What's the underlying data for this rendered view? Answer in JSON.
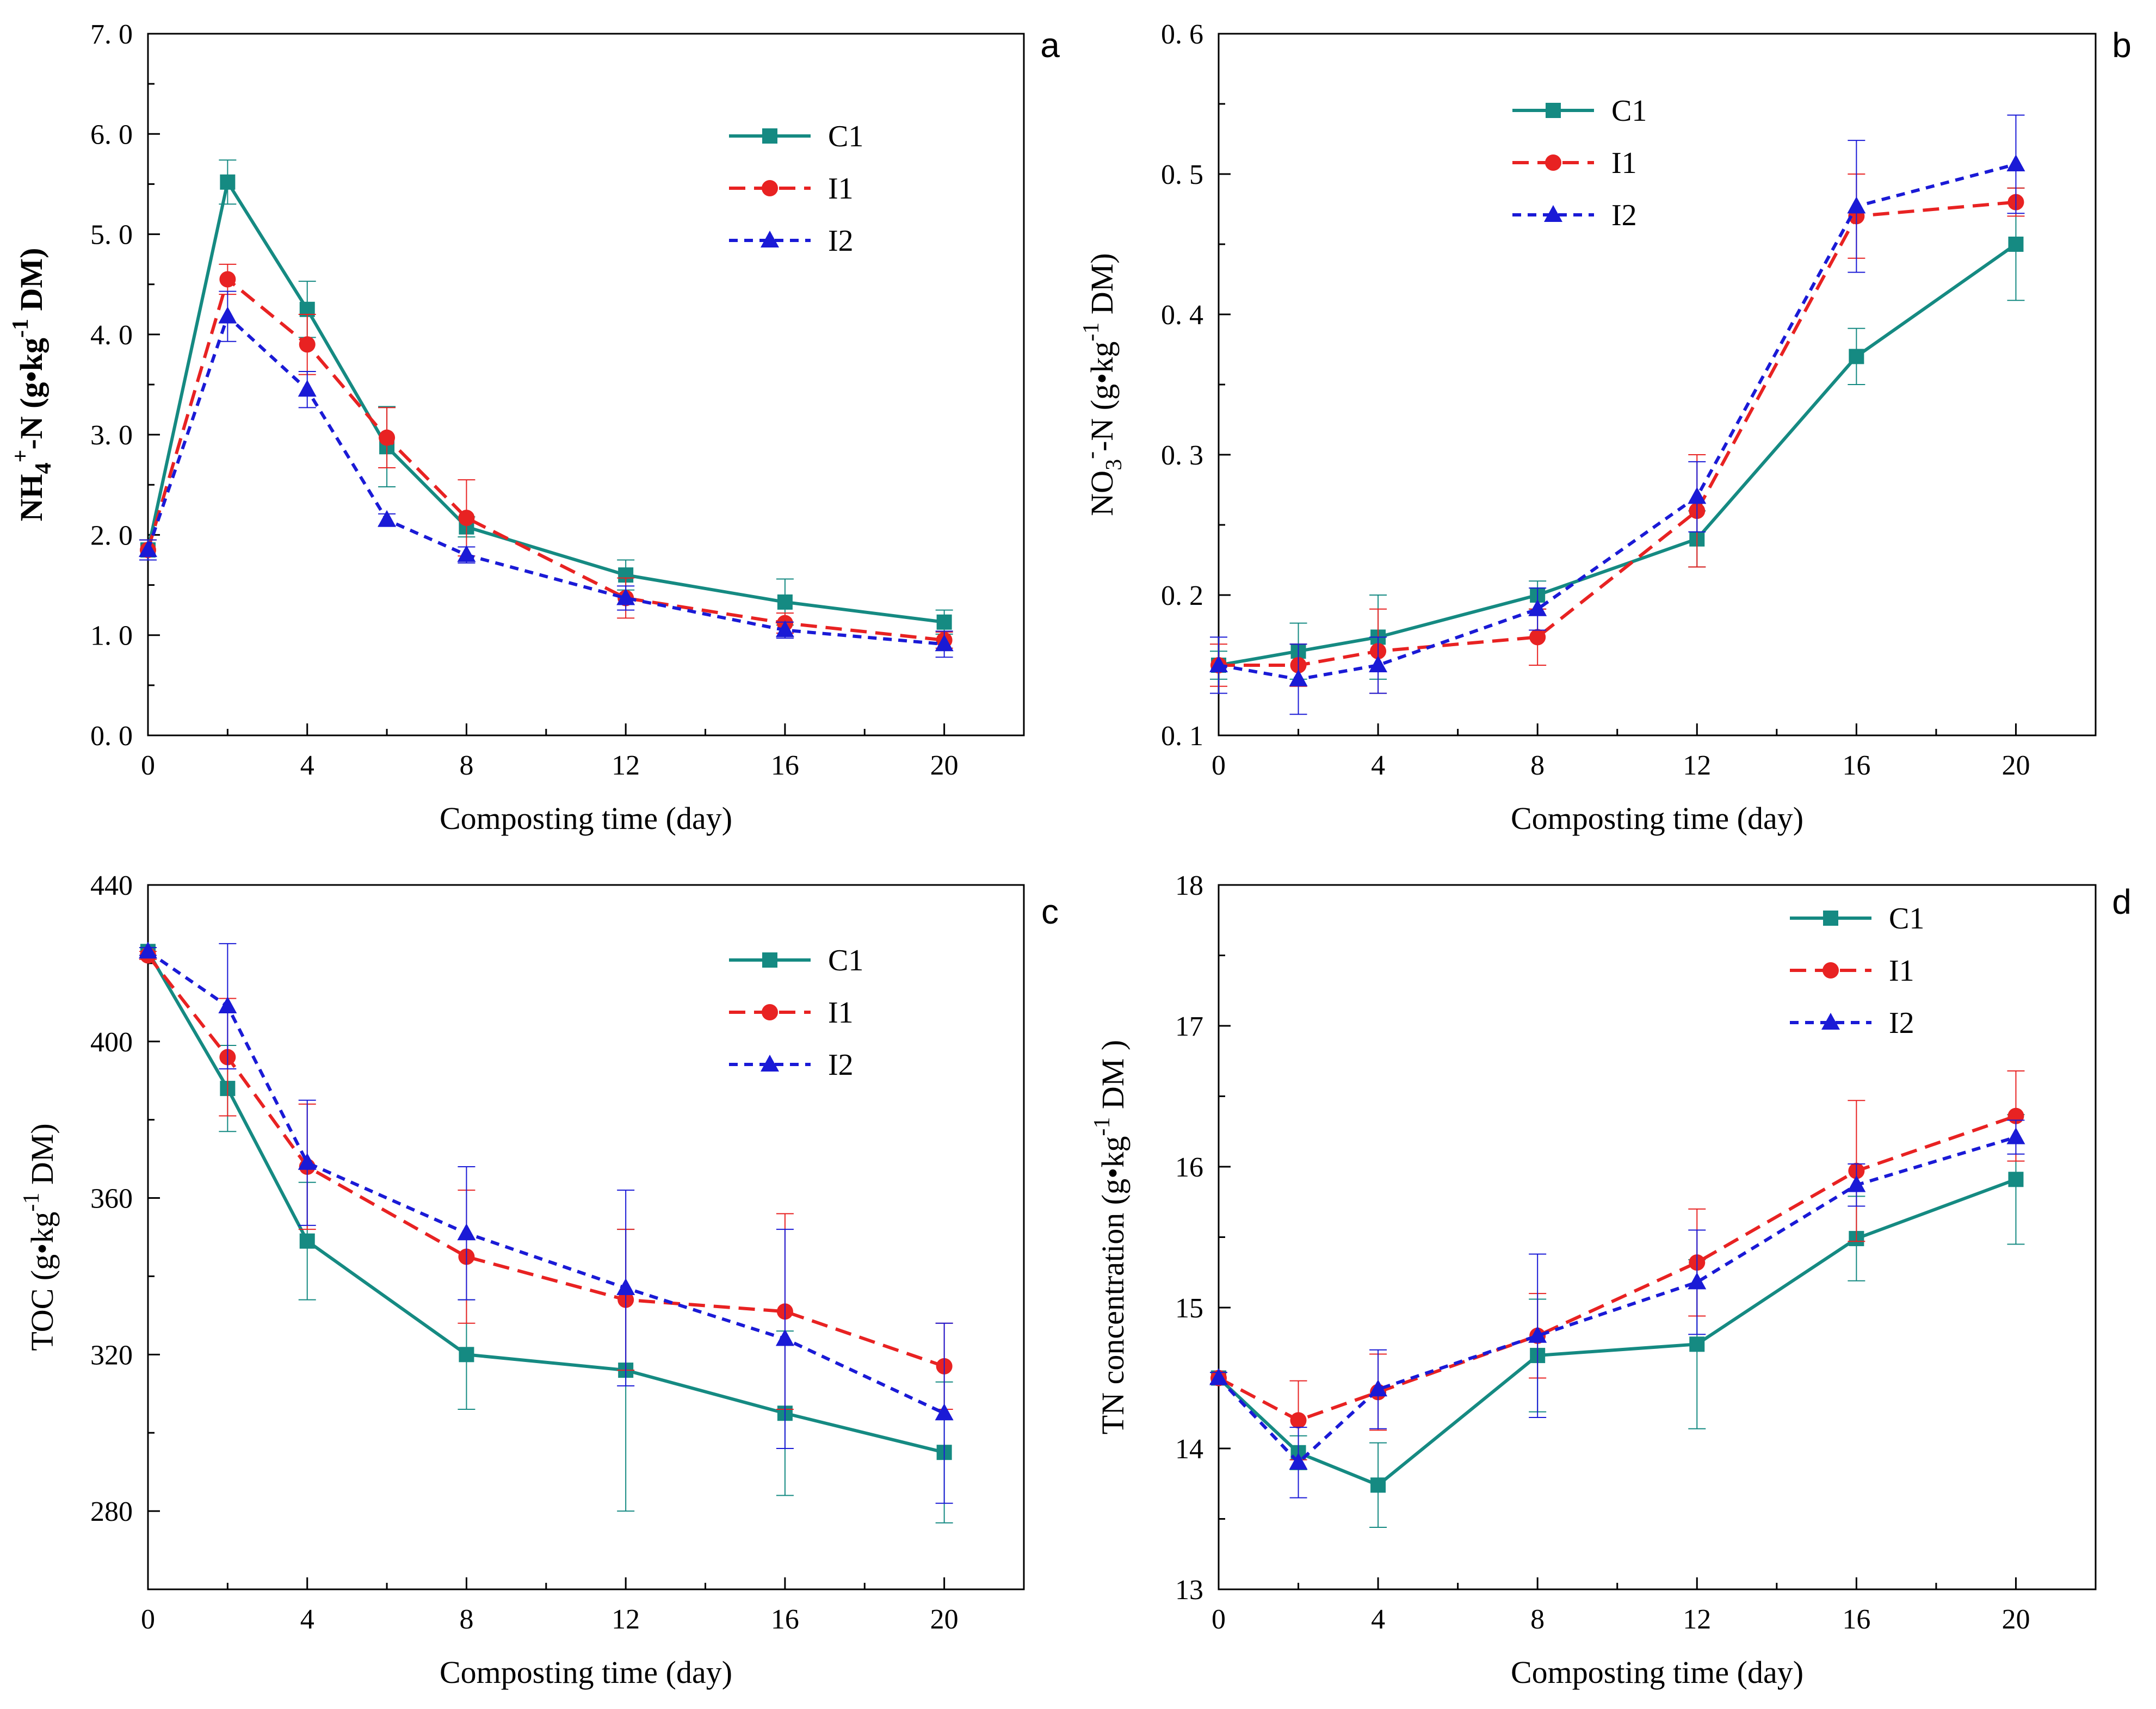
{
  "series_styles": [
    {
      "name": "C1",
      "color": "#158a82",
      "marker": "square",
      "dash": "solid"
    },
    {
      "name": "I1",
      "color": "#e82222",
      "marker": "circle",
      "dash": "long-dash"
    },
    {
      "name": "I2",
      "color": "#1a1ad6",
      "marker": "triangle",
      "dash": "short-dash"
    }
  ],
  "chart_data": [
    {
      "id": "a",
      "letter": "a",
      "type": "line",
      "xlabel": "Composting time (day)",
      "ylabel": "NH4+-N (g•kg-1 DM)",
      "ylabel_parts": {
        "base": "NH",
        "sub": "4",
        "sup": "+",
        "mid": "-N (g•kg",
        "sup2": "-1",
        "end": " DM)"
      },
      "xlim": [
        0,
        22
      ],
      "ylim": [
        0,
        7
      ],
      "xticks": [
        0,
        4,
        8,
        12,
        16,
        20
      ],
      "xtick_labels": [
        "0",
        "4",
        "8",
        "12",
        "16",
        "20"
      ],
      "yticks": [
        0,
        1,
        2,
        3,
        4,
        5,
        6,
        7
      ],
      "ytick_labels": [
        "0. 0",
        "1. 0",
        "2. 0",
        "3. 0",
        "4. 0",
        "5. 0",
        "6. 0",
        "7. 0"
      ],
      "legend_position": "top-right",
      "x": [
        0,
        2,
        4,
        6,
        8,
        12,
        16,
        20
      ],
      "series": [
        {
          "name": "C1",
          "values": [
            1.85,
            5.52,
            4.25,
            2.88,
            2.08,
            1.6,
            1.33,
            1.13
          ],
          "errors": [
            0.1,
            0.22,
            0.28,
            0.4,
            0.1,
            0.15,
            0.23,
            0.12
          ]
        },
        {
          "name": "I1",
          "values": [
            1.85,
            4.55,
            3.9,
            2.97,
            2.17,
            1.37,
            1.12,
            0.95
          ],
          "errors": [
            0.1,
            0.15,
            0.3,
            0.3,
            0.38,
            0.2,
            0.1,
            0.08
          ]
        },
        {
          "name": "I2",
          "values": [
            1.85,
            4.18,
            3.45,
            2.15,
            1.8,
            1.37,
            1.05,
            0.91
          ],
          "errors": [
            0.1,
            0.25,
            0.18,
            0.06,
            0.08,
            0.12,
            0.08,
            0.13
          ]
        }
      ]
    },
    {
      "id": "b",
      "letter": "b",
      "type": "line",
      "xlabel": "Composting time (day)",
      "ylabel": "NO3--N (g•kg-1 DM)",
      "ylabel_parts": {
        "base": "NO",
        "sub": "3",
        "sup": "-",
        "mid": "-N (g•kg",
        "sup2": "-1",
        "end": " DM)"
      },
      "xlim": [
        0,
        22
      ],
      "ylim": [
        0.1,
        0.6
      ],
      "xticks": [
        0,
        4,
        8,
        12,
        16,
        20
      ],
      "xtick_labels": [
        "0",
        "4",
        "8",
        "12",
        "16",
        "20"
      ],
      "yticks": [
        0.1,
        0.2,
        0.3,
        0.4,
        0.5,
        0.6
      ],
      "ytick_labels": [
        "0. 1",
        "0. 2",
        "0. 3",
        "0. 4",
        "0. 5",
        "0. 6"
      ],
      "legend_position": "top-center",
      "x": [
        0,
        2,
        4,
        8,
        12,
        16,
        20
      ],
      "series": [
        {
          "name": "C1",
          "values": [
            0.15,
            0.16,
            0.17,
            0.2,
            0.24,
            0.37,
            0.45
          ],
          "errors": [
            0.01,
            0.02,
            0.03,
            0.01,
            0.02,
            0.02,
            0.04
          ]
        },
        {
          "name": "I1",
          "values": [
            0.15,
            0.15,
            0.16,
            0.17,
            0.26,
            0.47,
            0.48
          ],
          "errors": [
            0.015,
            0.015,
            0.03,
            0.02,
            0.04,
            0.03,
            0.01
          ]
        },
        {
          "name": "I2",
          "values": [
            0.15,
            0.14,
            0.15,
            0.19,
            0.27,
            0.477,
            0.507
          ],
          "errors": [
            0.02,
            0.025,
            0.02,
            0.015,
            0.025,
            0.047,
            0.035
          ]
        }
      ]
    },
    {
      "id": "c",
      "letter": "c",
      "type": "line",
      "xlabel": "Composting time (day)",
      "ylabel": "TOC (g•kg-1 DM)",
      "ylabel_parts": {
        "base": "TOC (g•kg",
        "sub": "",
        "sup": "-1",
        "mid": " DM)",
        "sup2": "",
        "end": ""
      },
      "xlim": [
        0,
        22
      ],
      "ylim": [
        260,
        440
      ],
      "xticks": [
        0,
        4,
        8,
        12,
        16,
        20
      ],
      "xtick_labels": [
        "0",
        "4",
        "8",
        "12",
        "16",
        "20"
      ],
      "yticks": [
        280,
        320,
        360,
        400,
        440
      ],
      "ytick_labels": [
        "280",
        "320",
        "360",
        "400",
        "440"
      ],
      "legend_position": "top-right",
      "x": [
        0,
        2,
        4,
        8,
        12,
        16,
        20
      ],
      "series": [
        {
          "name": "C1",
          "values": [
            423,
            388,
            349,
            320,
            316,
            305,
            295
          ],
          "errors": [
            1,
            11,
            15,
            14,
            36,
            21,
            18
          ]
        },
        {
          "name": "I1",
          "values": [
            422,
            396,
            368,
            345,
            334,
            331,
            317
          ],
          "errors": [
            1,
            15,
            16,
            17,
            18,
            25,
            11
          ]
        },
        {
          "name": "I2",
          "values": [
            423,
            409,
            369,
            351,
            337,
            324,
            305
          ],
          "errors": [
            1,
            16,
            16,
            17,
            25,
            28,
            23
          ]
        }
      ]
    },
    {
      "id": "d",
      "letter": "d",
      "type": "line",
      "xlabel": "Composting time (day)",
      "ylabel": "TN concentration (g•kg-1 DM )",
      "ylabel_parts": {
        "base": "TN concentration (g•kg",
        "sub": "",
        "sup": "-1",
        "mid": " DM )",
        "sup2": "",
        "end": ""
      },
      "xlim": [
        0,
        22
      ],
      "ylim": [
        13,
        18
      ],
      "xticks": [
        0,
        4,
        8,
        12,
        16,
        20
      ],
      "xtick_labels": [
        "0",
        "4",
        "8",
        "12",
        "16",
        "20"
      ],
      "yticks": [
        13,
        14,
        15,
        16,
        17,
        18
      ],
      "ytick_labels": [
        "13",
        "14",
        "15",
        "16",
        "17",
        "18"
      ],
      "legend_position": "top-right",
      "x": [
        0,
        2,
        4,
        8,
        12,
        16,
        20
      ],
      "series": [
        {
          "name": "C1",
          "values": [
            14.5,
            13.97,
            13.74,
            14.66,
            14.74,
            15.49,
            15.91
          ],
          "errors": [
            0.04,
            0.12,
            0.3,
            0.4,
            0.6,
            0.3,
            0.46
          ]
        },
        {
          "name": "I1",
          "values": [
            14.5,
            14.2,
            14.4,
            14.8,
            15.32,
            15.97,
            16.36
          ],
          "errors": [
            0.04,
            0.28,
            0.27,
            0.3,
            0.38,
            0.5,
            0.32
          ]
        },
        {
          "name": "I2",
          "values": [
            14.5,
            13.9,
            14.42,
            14.8,
            15.18,
            15.87,
            16.21
          ],
          "errors": [
            0.04,
            0.25,
            0.28,
            0.58,
            0.37,
            0.15,
            0.12
          ]
        }
      ]
    }
  ]
}
